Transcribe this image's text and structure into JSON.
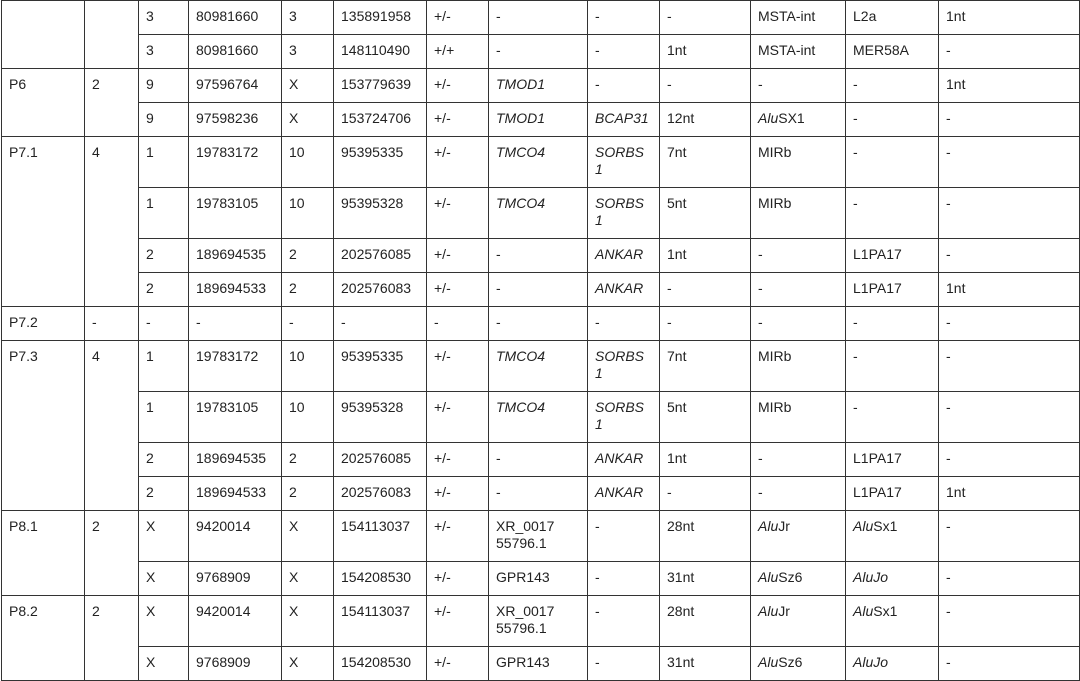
{
  "table": {
    "groups": [
      {
        "patient": "",
        "count": "",
        "rows": [
          [
            "3",
            "80981660",
            "3",
            "135891958",
            "+/-",
            "-",
            "-",
            "-",
            "MSTA-int",
            "L2a",
            "1nt"
          ],
          [
            "3",
            "80981660",
            "3",
            "148110490",
            "+/+",
            "-",
            "-",
            "1nt",
            "MSTA-int",
            "MER58A",
            "-"
          ]
        ]
      },
      {
        "patient": "P6",
        "count": "2",
        "rows": [
          [
            "9",
            "97596764",
            "X",
            "153779639",
            "+/-",
            [
              {
                "t": "TMOD1",
                "i": true
              }
            ],
            "-",
            "-",
            "-",
            "-",
            "1nt"
          ],
          [
            "9",
            "97598236",
            "X",
            "153724706",
            "+/-",
            [
              {
                "t": "TMOD1",
                "i": true
              }
            ],
            [
              {
                "t": "BCAP31",
                "i": true
              }
            ],
            "12nt",
            [
              {
                "t": "Alu",
                "i": true
              },
              {
                "t": "SX1"
              }
            ],
            "-",
            "-"
          ]
        ]
      },
      {
        "patient": "P7.1",
        "count": "4",
        "rows": [
          [
            "1",
            "19783172",
            "10",
            "95395335",
            "+/-",
            [
              {
                "t": "TMCO4",
                "i": true
              }
            ],
            [
              {
                "t": "SORBS1",
                "i": true
              }
            ],
            "7nt",
            "MIRb",
            "-",
            "-"
          ],
          [
            "1",
            "19783105",
            "10",
            "95395328",
            "+/-",
            [
              {
                "t": "TMCO4",
                "i": true
              }
            ],
            [
              {
                "t": "SORBS1",
                "i": true
              }
            ],
            "5nt",
            "MIRb",
            "-",
            "-"
          ],
          [
            "2",
            "189694535",
            "2",
            "202576085",
            "+/-",
            "-",
            [
              {
                "t": "ANKAR",
                "i": true
              }
            ],
            "1nt",
            "-",
            "L1PA17",
            "-"
          ],
          [
            "2",
            "189694533",
            "2",
            "202576083",
            "+/-",
            "-",
            [
              {
                "t": "ANKAR",
                "i": true
              }
            ],
            "-",
            "-",
            "L1PA17",
            "1nt"
          ]
        ]
      },
      {
        "patient": "P7.2",
        "count": "-",
        "rows": [
          [
            "-",
            "-",
            "-",
            "-",
            "-",
            "-",
            "-",
            "-",
            "-",
            "-",
            "-"
          ]
        ]
      },
      {
        "patient": "P7.3",
        "count": "4",
        "rows": [
          [
            "1",
            "19783172",
            "10",
            "95395335",
            "+/-",
            [
              {
                "t": "TMCO4",
                "i": true
              }
            ],
            [
              {
                "t": "SORBS1",
                "i": true
              }
            ],
            "7nt",
            "MIRb",
            "-",
            "-"
          ],
          [
            "1",
            "19783105",
            "10",
            "95395328",
            "+/-",
            [
              {
                "t": "TMCO4",
                "i": true
              }
            ],
            [
              {
                "t": "SORBS1",
                "i": true
              }
            ],
            "5nt",
            "MIRb",
            "-",
            "-"
          ],
          [
            "2",
            "189694535",
            "2",
            "202576085",
            "+/-",
            "-",
            [
              {
                "t": "ANKAR",
                "i": true
              }
            ],
            "1nt",
            "-",
            "L1PA17",
            "-"
          ],
          [
            "2",
            "189694533",
            "2",
            "202576083",
            "+/-",
            "-",
            [
              {
                "t": "ANKAR",
                "i": true
              }
            ],
            "-",
            "-",
            "L1PA17",
            "1nt"
          ]
        ]
      },
      {
        "patient": "P8.1",
        "count": "2",
        "rows": [
          [
            "X",
            "9420014",
            "X",
            "154113037",
            "+/-",
            "XR_001755796.1",
            "-",
            "28nt",
            [
              {
                "t": "Alu",
                "i": true
              },
              {
                "t": "Jr"
              }
            ],
            [
              {
                "t": "Alu",
                "i": true
              },
              {
                "t": "Sx1"
              }
            ],
            "-"
          ],
          [
            "X",
            "9768909",
            "X",
            "154208530",
            "+/-",
            "GPR143",
            "-",
            "31nt",
            [
              {
                "t": "Alu",
                "i": true
              },
              {
                "t": "Sz6"
              }
            ],
            [
              {
                "t": "AluJo",
                "i": true
              }
            ],
            "-"
          ]
        ]
      },
      {
        "patient": "P8.2",
        "count": "2",
        "rows": [
          [
            "X",
            "9420014",
            "X",
            "154113037",
            "+/-",
            "XR_001755796.1",
            "-",
            "28nt",
            [
              {
                "t": "Alu",
                "i": true
              },
              {
                "t": "Jr"
              }
            ],
            [
              {
                "t": "Alu",
                "i": true
              },
              {
                "t": "Sx1"
              }
            ],
            "-"
          ],
          [
            "X",
            "9768909",
            "X",
            "154208530",
            "+/-",
            "GPR143",
            "-",
            "31nt",
            [
              {
                "t": "Alu",
                "i": true
              },
              {
                "t": "Sz6"
              }
            ],
            [
              {
                "t": "AluJo",
                "i": true
              }
            ],
            "-"
          ]
        ]
      }
    ]
  }
}
